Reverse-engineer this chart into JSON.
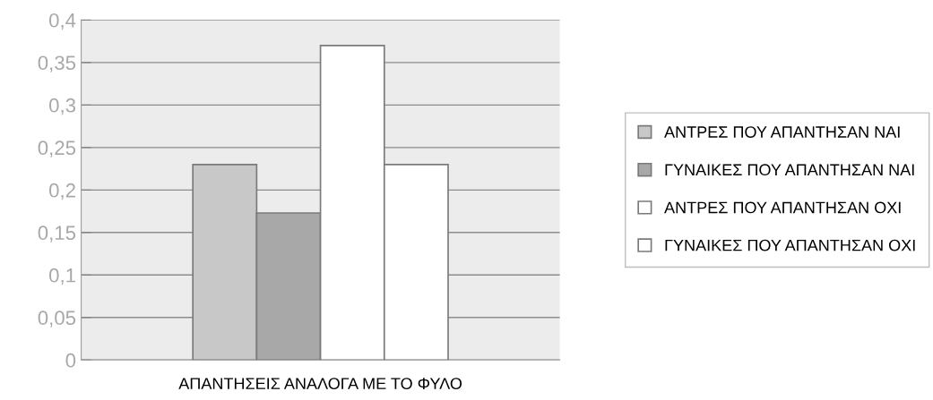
{
  "chart_data": {
    "type": "bar",
    "categories": [
      "ΑΠΑΝΤΗΣΕΙΣ ΑΝΑΛΟΓΑ ΜΕ ΤΟ ΦΥΛΟ"
    ],
    "series": [
      {
        "name": "ΑΝΤΡΕΣ ΠΟΥ ΑΠΑΝΤΗΣΑΝ ΝΑΙ",
        "color": "#c8c8c8",
        "values": [
          0.23
        ]
      },
      {
        "name": "ΓΥΝΑΙΚΕΣ ΠΟΥ ΑΠΑΝΤΗΣΑΝ ΝΑΙ",
        "color": "#a8a8a8",
        "values": [
          0.173
        ]
      },
      {
        "name": "ΑΝΤΡΕΣ ΠΟΥ ΑΠΑΝΤΗΣΑΝ ΟΧΙ",
        "color": "#ffffff",
        "values": [
          0.37
        ]
      },
      {
        "name": "ΓΥΝΑΙΚΕΣ ΠΟΥ ΑΠΑΝΤΗΣΑΝ ΟΧΙ",
        "color": "#ffffff",
        "values": [
          0.23
        ]
      }
    ],
    "ylim": [
      0,
      0.4
    ],
    "yticks": [
      0,
      {
        "value": 0.05,
        "label": "0,05"
      },
      {
        "value": 0.1,
        "label": "0,1"
      },
      {
        "value": 0.15,
        "label": "0,15"
      },
      {
        "value": 0.2,
        "label": "0,2"
      },
      {
        "value": 0.25,
        "label": "0,25"
      },
      {
        "value": 0.3,
        "label": "0,3"
      },
      {
        "value": 0.35,
        "label": "0,35"
      },
      {
        "value": 0.4,
        "label": "0,4"
      }
    ],
    "grid": "y",
    "legend": "right"
  }
}
